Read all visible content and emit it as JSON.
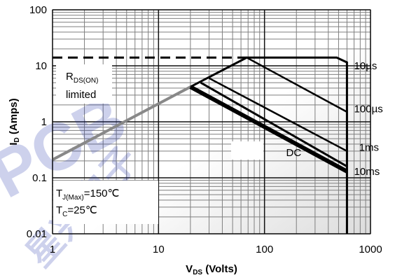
{
  "chart_data": {
    "type": "line",
    "xscale": "log",
    "yscale": "log",
    "xlim": [
      1,
      1000
    ],
    "ylim": [
      0.01,
      100
    ],
    "grid": true,
    "x_ticks": [
      {
        "value": 1,
        "label": "1"
      },
      {
        "value": 10,
        "label": "10"
      },
      {
        "value": 100,
        "label": "100"
      },
      {
        "value": 1000,
        "label": "1000"
      }
    ],
    "y_ticks": [
      {
        "value": 100,
        "label": "100"
      },
      {
        "value": 10,
        "label": "10"
      },
      {
        "value": 1,
        "label": "1"
      },
      {
        "value": 0.1,
        "label": "0.1"
      },
      {
        "value": 0.01,
        "label": "0.01"
      }
    ],
    "xlabel": {
      "main": "V",
      "sub": "DS",
      "rest": " (Volts)"
    },
    "ylabel": {
      "main": "I",
      "sub": "D",
      "rest": " (Amps)"
    },
    "rds_note": {
      "line1_main": "R",
      "line1_sub": "DS(ON)",
      "line2": "limited"
    },
    "conditions_note": {
      "tj_main": "T",
      "tj_sub": "J(Max)",
      "tj_rest": "=150℃",
      "tc_main": "T",
      "tc_sub": "C",
      "tc_rest": "=25℃"
    },
    "pulse_current_limit": {
      "y": 14,
      "x_from": 1,
      "x_to": 68,
      "style": "dashed"
    },
    "rds_on_line": {
      "points": [
        [
          1,
          0.21
        ],
        [
          20,
          4.2
        ]
      ],
      "color": "#888888"
    },
    "series": [
      {
        "name": "10µs",
        "label_at": [
          700,
          10
        ],
        "points": [
          [
            20,
            4.2
          ],
          [
            68,
            14
          ],
          [
            480,
            14
          ],
          [
            600,
            11.5
          ],
          [
            600,
            0.01
          ]
        ]
      },
      {
        "name": "100µs",
        "label_at": [
          700,
          1.7
        ],
        "points": [
          [
            68,
            14
          ],
          [
            600,
            1.5
          ],
          [
            600,
            0.01
          ]
        ]
      },
      {
        "name": "1ms",
        "label_at": [
          780,
          0.35
        ],
        "points": [
          [
            30,
            6.0
          ],
          [
            600,
            0.3
          ]
        ]
      },
      {
        "name": "10ms",
        "label_at": [
          700,
          0.13
        ],
        "points": [
          [
            25,
            5.0
          ],
          [
            600,
            0.16
          ]
        ]
      },
      {
        "name": "DC",
        "label_at": [
          160,
          0.28
        ],
        "points": [
          [
            20,
            4.2
          ],
          [
            600,
            0.13
          ]
        ]
      }
    ]
  },
  "watermark": {
    "text1": "PCB",
    "text2": "星兴电子"
  }
}
